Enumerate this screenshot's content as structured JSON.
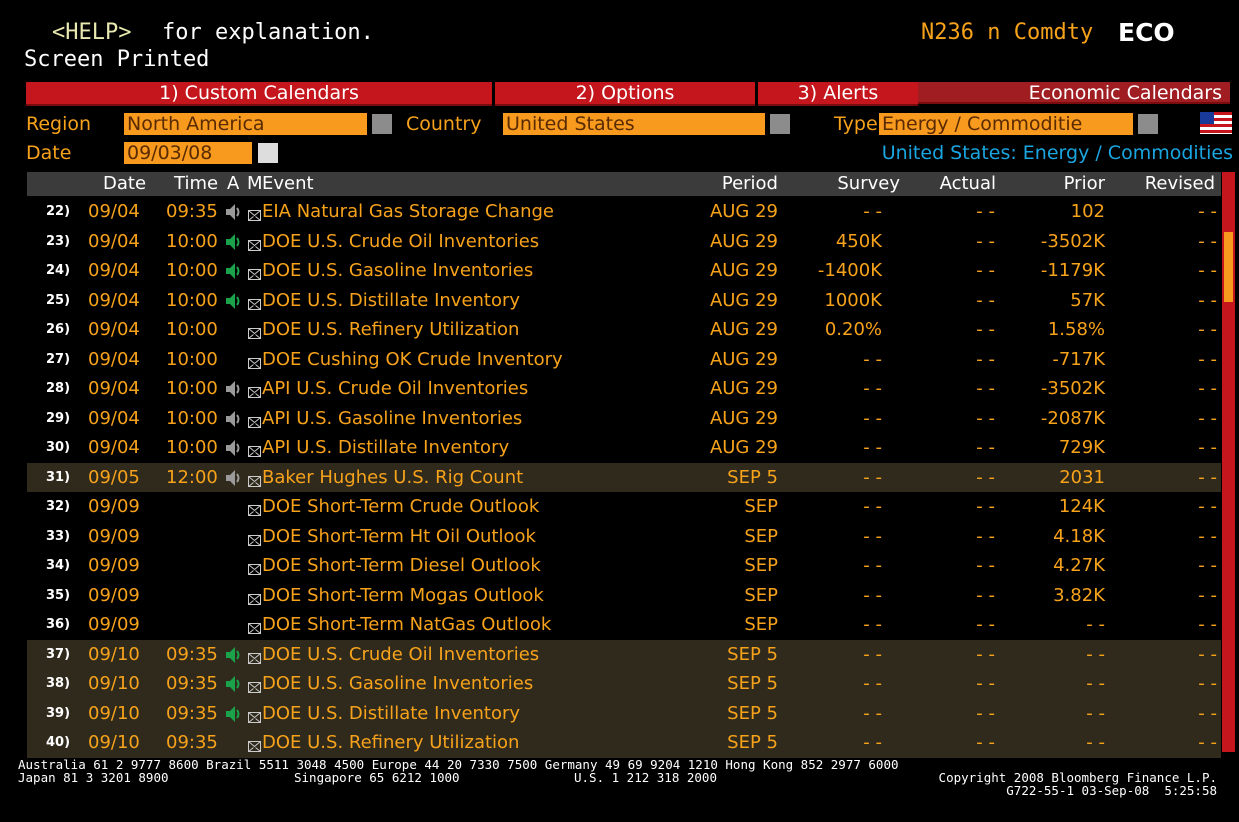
{
  "header": {
    "help_key": "<HELP>",
    "help_text": "for explanation.",
    "ticker": "N236 n Comdty",
    "function": "ECO",
    "status": "Screen Printed"
  },
  "tabs": {
    "items": [
      "1) Custom Calendars",
      "2) Options",
      "3) Alerts"
    ],
    "current": "Economic Calendars"
  },
  "filters": {
    "region_label": "Region",
    "region": "North America",
    "country_label": "Country",
    "country": "United States",
    "type_label": "Type",
    "type": "Energy / Commoditie",
    "date_label": "Date",
    "date": "09/03/08",
    "subtitle": "United States: Energy / Commodities"
  },
  "table": {
    "columns": [
      "Date",
      "Time",
      "A",
      "M",
      "Event",
      "Period",
      "Survey",
      "Actual",
      "Prior",
      "Revised"
    ],
    "rows": [
      {
        "num": "22)",
        "date": "09/04",
        "time": "09:35",
        "speaker": "gray",
        "event": "EIA Natural Gas Storage Change",
        "period": "AUG 29",
        "survey": "- -",
        "actual": "- -",
        "prior": "102",
        "revised": "- -",
        "highlight": false
      },
      {
        "num": "23)",
        "date": "09/04",
        "time": "10:00",
        "speaker": "green",
        "event": "DOE U.S. Crude Oil Inventories",
        "period": "AUG 29",
        "survey": "450K",
        "actual": "- -",
        "prior": "-3502K",
        "revised": "- -",
        "highlight": false
      },
      {
        "num": "24)",
        "date": "09/04",
        "time": "10:00",
        "speaker": "green",
        "event": "DOE U.S. Gasoline Inventories",
        "period": "AUG 29",
        "survey": "-1400K",
        "actual": "- -",
        "prior": "-1179K",
        "revised": "- -",
        "highlight": false
      },
      {
        "num": "25)",
        "date": "09/04",
        "time": "10:00",
        "speaker": "green",
        "event": "DOE U.S. Distillate Inventory",
        "period": "AUG 29",
        "survey": "1000K",
        "actual": "- -",
        "prior": "57K",
        "revised": "- -",
        "highlight": false
      },
      {
        "num": "26)",
        "date": "09/04",
        "time": "10:00",
        "speaker": "none",
        "event": "DOE U.S. Refinery Utilization",
        "period": "AUG 29",
        "survey": "0.20%",
        "actual": "- -",
        "prior": "1.58%",
        "revised": "- -",
        "highlight": false
      },
      {
        "num": "27)",
        "date": "09/04",
        "time": "10:00",
        "speaker": "none",
        "event": "DOE Cushing OK Crude Inventory",
        "period": "AUG 29",
        "survey": "- -",
        "actual": "- -",
        "prior": "-717K",
        "revised": "- -",
        "highlight": false
      },
      {
        "num": "28)",
        "date": "09/04",
        "time": "10:00",
        "speaker": "gray",
        "event": "API U.S. Crude Oil Inventories",
        "period": "AUG 29",
        "survey": "- -",
        "actual": "- -",
        "prior": "-3502K",
        "revised": "- -",
        "highlight": false
      },
      {
        "num": "29)",
        "date": "09/04",
        "time": "10:00",
        "speaker": "gray",
        "event": "API U.S. Gasoline Inventories",
        "period": "AUG 29",
        "survey": "- -",
        "actual": "- -",
        "prior": "-2087K",
        "revised": "- -",
        "highlight": false
      },
      {
        "num": "30)",
        "date": "09/04",
        "time": "10:00",
        "speaker": "gray",
        "event": "API U.S. Distillate Inventory",
        "period": "AUG 29",
        "survey": "- -",
        "actual": "- -",
        "prior": "729K",
        "revised": "- -",
        "highlight": false
      },
      {
        "num": "31)",
        "date": "09/05",
        "time": "12:00",
        "speaker": "gray",
        "event": "Baker Hughes U.S. Rig Count",
        "period": "SEP 5",
        "survey": "- -",
        "actual": "- -",
        "prior": "2031",
        "revised": "- -",
        "highlight": true
      },
      {
        "num": "32)",
        "date": "09/09",
        "time": null,
        "speaker": "none",
        "event": "DOE Short-Term Crude Outlook",
        "period": "SEP",
        "survey": "- -",
        "actual": "- -",
        "prior": "124K",
        "revised": "- -",
        "highlight": false
      },
      {
        "num": "33)",
        "date": "09/09",
        "time": null,
        "speaker": "none",
        "event": "DOE Short-Term Ht Oil Outlook",
        "period": "SEP",
        "survey": "- -",
        "actual": "- -",
        "prior": "4.18K",
        "revised": "- -",
        "highlight": false
      },
      {
        "num": "34)",
        "date": "09/09",
        "time": null,
        "speaker": "none",
        "event": "DOE Short-Term Diesel Outlook",
        "period": "SEP",
        "survey": "- -",
        "actual": "- -",
        "prior": "4.27K",
        "revised": "- -",
        "highlight": false
      },
      {
        "num": "35)",
        "date": "09/09",
        "time": null,
        "speaker": "none",
        "event": "DOE Short-Term Mogas Outlook",
        "period": "SEP",
        "survey": "- -",
        "actual": "- -",
        "prior": "3.82K",
        "revised": "- -",
        "highlight": false
      },
      {
        "num": "36)",
        "date": "09/09",
        "time": null,
        "speaker": "none",
        "event": "DOE Short-Term NatGas Outlook",
        "period": "SEP",
        "survey": "- -",
        "actual": "- -",
        "prior": "- -",
        "revised": "- -",
        "highlight": false
      },
      {
        "num": "37)",
        "date": "09/10",
        "time": "09:35",
        "speaker": "green",
        "event": "DOE U.S. Crude Oil Inventories",
        "period": "SEP 5",
        "survey": "- -",
        "actual": "- -",
        "prior": "- -",
        "revised": "- -",
        "highlight": true
      },
      {
        "num": "38)",
        "date": "09/10",
        "time": "09:35",
        "speaker": "green",
        "event": "DOE U.S. Gasoline Inventories",
        "period": "SEP 5",
        "survey": "- -",
        "actual": "- -",
        "prior": "- -",
        "revised": "- -",
        "highlight": true
      },
      {
        "num": "39)",
        "date": "09/10",
        "time": "09:35",
        "speaker": "green",
        "event": "DOE U.S. Distillate Inventory",
        "period": "SEP 5",
        "survey": "- -",
        "actual": "- -",
        "prior": "- -",
        "revised": "- -",
        "highlight": true
      },
      {
        "num": "40)",
        "date": "09/10",
        "time": "09:35",
        "speaker": "none",
        "event": "DOE U.S. Refinery Utilization",
        "period": "SEP 5",
        "survey": "- -",
        "actual": "- -",
        "prior": "- -",
        "revised": "- -",
        "highlight": true
      }
    ]
  },
  "footer": {
    "line1": "Australia 61 2 9777 8600 Brazil 5511 3048 4500 Europe 44 20 7330 7500 Germany 49 69 9204 1210 Hong Kong 852 2977 6000",
    "japan": "Japan 81 3 3201 8900",
    "singapore": "Singapore 65 6212 1000",
    "us": "U.S. 1 212 318 2000",
    "copyright": "Copyright 2008 Bloomberg Finance L.P.",
    "stamp": "G722-55-1 03-Sep-08  5:25:58"
  }
}
